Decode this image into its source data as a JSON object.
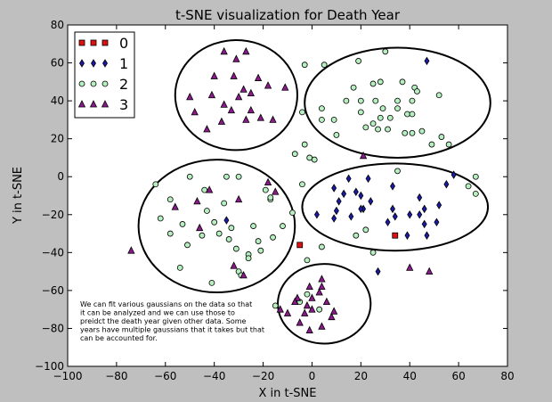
{
  "chart_data": {
    "type": "scatter",
    "title": "t-SNE visualization for Death Year",
    "xlabel": "X in t-SNE",
    "ylabel": "Y in t-SNE",
    "xlim": [
      -100,
      80
    ],
    "ylim": [
      -100,
      80
    ],
    "xticks": [
      -100,
      -80,
      -60,
      -40,
      -20,
      0,
      20,
      40,
      60,
      80
    ],
    "yticks": [
      -100,
      -80,
      -60,
      -40,
      -20,
      0,
      20,
      40,
      60,
      80
    ],
    "legend_position": "top-left",
    "annotation": "We can fit various gaussians on the data so that\nit can be analyzed and we can use those to\npreidct the death year given other data. Some\nyears have multiple gaussians that it takes but that\ncan be accounted for.",
    "series": [
      {
        "name": "0",
        "marker": "square",
        "color": "#dd1111",
        "points": [
          [
            -5,
            -36
          ],
          [
            34,
            -31
          ]
        ]
      },
      {
        "name": "1",
        "marker": "diamond",
        "color": "#1a1aa8",
        "points": [
          [
            -35,
            -23
          ],
          [
            13,
            -9
          ],
          [
            11,
            -13
          ],
          [
            15,
            -1
          ],
          [
            9,
            -6
          ],
          [
            18,
            -8
          ],
          [
            20,
            -10
          ],
          [
            23,
            -1
          ],
          [
            21,
            -17
          ],
          [
            24,
            -13
          ],
          [
            10,
            -18
          ],
          [
            9,
            -22
          ],
          [
            2,
            -20
          ],
          [
            16,
            -21
          ],
          [
            20,
            -17
          ],
          [
            33,
            -5
          ],
          [
            33,
            -17
          ],
          [
            34,
            -21
          ],
          [
            31,
            -24
          ],
          [
            40,
            -20
          ],
          [
            44,
            -11
          ],
          [
            46,
            -17
          ],
          [
            44,
            -20
          ],
          [
            46,
            -25
          ],
          [
            52,
            -15
          ],
          [
            51,
            -24
          ],
          [
            47,
            -31
          ],
          [
            39,
            -31
          ],
          [
            27,
            -50
          ],
          [
            55,
            -4
          ],
          [
            58,
            1
          ],
          [
            47,
            61
          ]
        ]
      },
      {
        "name": "2",
        "marker": "circle",
        "color": "#b6f0c0",
        "points": [
          [
            -3,
            59
          ],
          [
            5,
            59
          ],
          [
            -4,
            34
          ],
          [
            19,
            61
          ],
          [
            30,
            66
          ],
          [
            17,
            47
          ],
          [
            25,
            49
          ],
          [
            28,
            50
          ],
          [
            37,
            50
          ],
          [
            42,
            47
          ],
          [
            20,
            40
          ],
          [
            14,
            40
          ],
          [
            26,
            40
          ],
          [
            35,
            40
          ],
          [
            41,
            40
          ],
          [
            43,
            45
          ],
          [
            52,
            43
          ],
          [
            4,
            36
          ],
          [
            29,
            36
          ],
          [
            35,
            36
          ],
          [
            39,
            33
          ],
          [
            20,
            34
          ],
          [
            28,
            31
          ],
          [
            32,
            31
          ],
          [
            41,
            33
          ],
          [
            25,
            28
          ],
          [
            4,
            30
          ],
          [
            9,
            30
          ],
          [
            22,
            26
          ],
          [
            27,
            25
          ],
          [
            38,
            23
          ],
          [
            31,
            25
          ],
          [
            41,
            23
          ],
          [
            45,
            24
          ],
          [
            49,
            17
          ],
          [
            53,
            21
          ],
          [
            56,
            17
          ],
          [
            10,
            22
          ],
          [
            -3,
            17
          ],
          [
            -1,
            10
          ],
          [
            -7,
            12
          ],
          [
            1,
            9
          ],
          [
            35,
            3
          ],
          [
            64,
            -5
          ],
          [
            67,
            -9
          ],
          [
            67,
            0
          ],
          [
            -64,
            -4
          ],
          [
            -58,
            -12
          ],
          [
            -50,
            0
          ],
          [
            -44,
            -7
          ],
          [
            -36,
            -14
          ],
          [
            -30,
            0
          ],
          [
            -19,
            -7
          ],
          [
            -17,
            -12
          ],
          [
            -35,
            0
          ],
          [
            -8,
            -19
          ],
          [
            -12,
            -26
          ],
          [
            -4,
            -4
          ],
          [
            -53,
            -25
          ],
          [
            -43,
            -18
          ],
          [
            -40,
            -24
          ],
          [
            -33,
            -27
          ],
          [
            -31,
            -38
          ],
          [
            -24,
            -26
          ],
          [
            -22,
            -34
          ],
          [
            -26,
            -41
          ],
          [
            -38,
            -30
          ],
          [
            -45,
            -31
          ],
          [
            -51,
            -36
          ],
          [
            -58,
            -30
          ],
          [
            -62,
            -22
          ],
          [
            -54,
            -48
          ],
          [
            -41,
            -56
          ],
          [
            -30,
            -50
          ],
          [
            -26,
            -43
          ],
          [
            -21,
            -39
          ],
          [
            -34,
            -33
          ],
          [
            -29,
            -52
          ],
          [
            -16,
            -32
          ],
          [
            -17,
            -11
          ],
          [
            -2,
            -62
          ],
          [
            -5,
            -66
          ],
          [
            -15,
            -68
          ],
          [
            3,
            -70
          ],
          [
            18,
            -31
          ],
          [
            22,
            -28
          ],
          [
            25,
            -40
          ],
          [
            4,
            -37
          ],
          [
            -2,
            -44
          ]
        ]
      },
      {
        "name": "3",
        "marker": "triangle",
        "color": "#8a1a8a",
        "points": [
          [
            -36,
            66
          ],
          [
            -27,
            66
          ],
          [
            -31,
            62
          ],
          [
            -40,
            53
          ],
          [
            -32,
            53
          ],
          [
            -22,
            52
          ],
          [
            -28,
            46
          ],
          [
            -30,
            42
          ],
          [
            -50,
            42
          ],
          [
            -41,
            43
          ],
          [
            -36,
            38
          ],
          [
            -25,
            44
          ],
          [
            -33,
            35
          ],
          [
            -18,
            48
          ],
          [
            -48,
            34
          ],
          [
            -37,
            29
          ],
          [
            -43,
            25
          ],
          [
            -25,
            35
          ],
          [
            -21,
            31
          ],
          [
            -27,
            30
          ],
          [
            -11,
            47
          ],
          [
            -16,
            30
          ],
          [
            21,
            11
          ],
          [
            -42,
            -7
          ],
          [
            -47,
            -13
          ],
          [
            -46,
            -27
          ],
          [
            -30,
            -12
          ],
          [
            -56,
            -16
          ],
          [
            -18,
            -3
          ],
          [
            -15,
            -8
          ],
          [
            -74,
            -39
          ],
          [
            -32,
            -47
          ],
          [
            -28,
            -52
          ],
          [
            -10,
            -72
          ],
          [
            -3,
            -72
          ],
          [
            0,
            -70
          ],
          [
            -1,
            -58
          ],
          [
            4,
            -54
          ],
          [
            3,
            -61
          ],
          [
            6,
            -66
          ],
          [
            8,
            -74
          ],
          [
            -5,
            -77
          ],
          [
            -1,
            -81
          ],
          [
            4,
            -79
          ],
          [
            9,
            -71
          ],
          [
            -6,
            -64
          ],
          [
            -13,
            -70
          ],
          [
            40,
            -48
          ],
          [
            48,
            -50
          ],
          [
            -2,
            -68
          ],
          [
            -7,
            -66
          ],
          [
            0,
            -64
          ],
          [
            4,
            -58
          ]
        ]
      }
    ],
    "ellipses": [
      {
        "cx": -31,
        "cy": 43,
        "rx": 25,
        "ry": 29
      },
      {
        "cx": 35,
        "cy": 39,
        "rx": 38,
        "ry": 29
      },
      {
        "cx": -39,
        "cy": -26,
        "rx": 32,
        "ry": 35
      },
      {
        "cx": 34,
        "cy": -16,
        "rx": 38,
        "ry": 23
      },
      {
        "cx": 5,
        "cy": -67,
        "rx": 19,
        "ry": 21
      }
    ]
  }
}
